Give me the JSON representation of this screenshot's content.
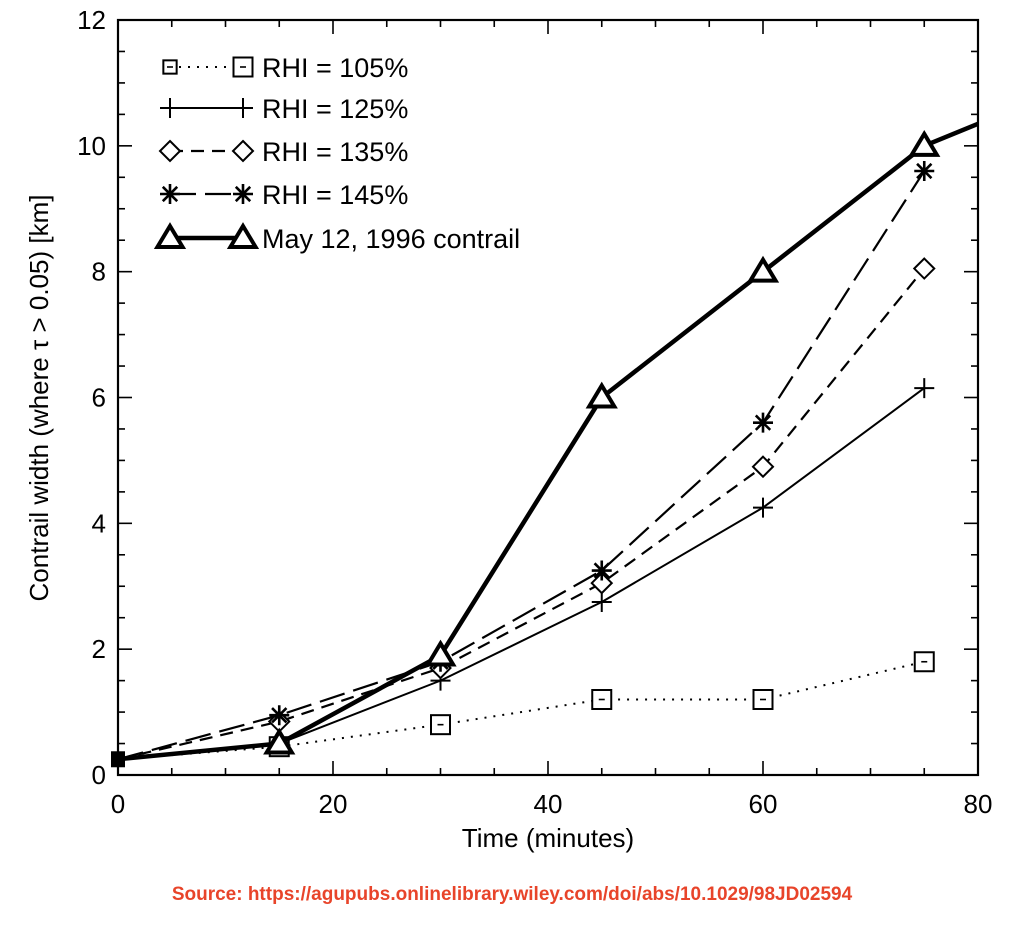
{
  "chart_data": {
    "type": "line",
    "title": "",
    "xlabel": "Time (minutes)",
    "ylabel": "Contrail width (where τ > 0.05) [km]",
    "xlim": [
      0,
      80
    ],
    "ylim": [
      0,
      12
    ],
    "xticks": [
      0,
      20,
      40,
      60,
      80
    ],
    "yticks": [
      0,
      2,
      4,
      6,
      8,
      10,
      12
    ],
    "grid": false,
    "legend_position": "top-left",
    "series": [
      {
        "name": "RHI = 105%",
        "marker": "square",
        "dash": "dotted",
        "x": [
          0,
          15,
          30,
          45,
          60,
          75
        ],
        "y": [
          0.25,
          0.45,
          0.8,
          1.2,
          1.2,
          1.8
        ]
      },
      {
        "name": "RHI = 125%",
        "marker": "plus",
        "dash": "solid",
        "x": [
          0,
          15,
          30,
          45,
          60,
          75
        ],
        "y": [
          0.25,
          0.5,
          1.5,
          2.75,
          4.25,
          6.15
        ]
      },
      {
        "name": "RHI = 135%",
        "marker": "diamond",
        "dash": "dashed",
        "x": [
          0,
          15,
          30,
          45,
          60,
          75
        ],
        "y": [
          0.25,
          0.85,
          1.7,
          3.05,
          4.9,
          8.05
        ]
      },
      {
        "name": "RHI = 145%",
        "marker": "star",
        "dash": "longdash",
        "x": [
          0,
          15,
          30,
          45,
          60,
          75
        ],
        "y": [
          0.25,
          0.95,
          1.8,
          3.25,
          5.6,
          9.6
        ]
      },
      {
        "name": "May 12, 1996 contrail",
        "marker": "triangle",
        "dash": "thick",
        "x": [
          0,
          15,
          30,
          45,
          60,
          75,
          80
        ],
        "y": [
          0.25,
          0.5,
          1.9,
          6.0,
          8.0,
          10.0,
          10.35
        ]
      }
    ]
  },
  "source_text": "Source: https://agupubs.onlinelibrary.wiley.com/doi/abs/10.1029/98JD02594"
}
